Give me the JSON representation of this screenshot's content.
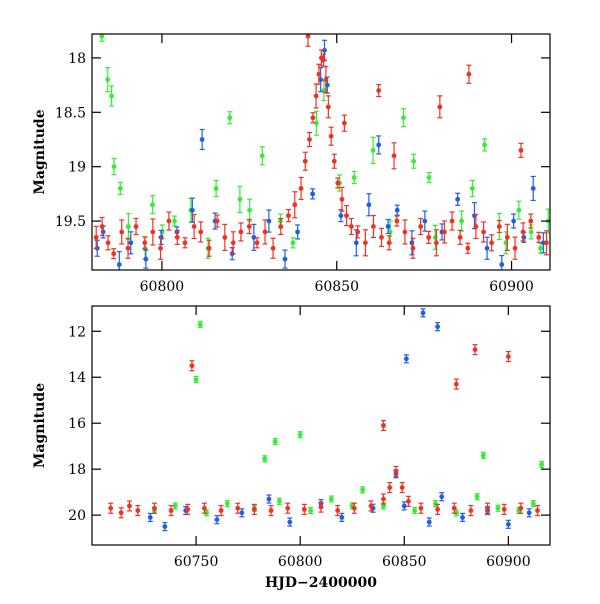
{
  "chart_data": [
    {
      "type": "scatter",
      "ylabel": "Magnitude",
      "xlabel": "",
      "xlim": [
        60780,
        60911
      ],
      "ylim": [
        19.95,
        17.78
      ],
      "y_inverted": true,
      "xticks": [
        60800,
        60850,
        60900
      ],
      "yticks": [
        18,
        18.5,
        19,
        19.5
      ],
      "grid": false,
      "series": [
        {
          "color": "#33ee33",
          "points": [
            [
              60782.8,
              17.8
            ],
            [
              60784.5,
              18.2
            ],
            [
              60785.6,
              18.35
            ],
            [
              60786.3,
              19.0
            ],
            [
              60788.1,
              19.2
            ],
            [
              60790.4,
              19.55
            ],
            [
              60795.2,
              19.75
            ],
            [
              60797.3,
              19.35
            ],
            [
              60800.1,
              19.6
            ],
            [
              60803.6,
              19.5
            ],
            [
              60808.3,
              19.4
            ],
            [
              60813.2,
              19.75
            ],
            [
              60815.5,
              19.2
            ],
            [
              60819.4,
              18.55
            ],
            [
              60822.3,
              19.3
            ],
            [
              60825.1,
              19.4
            ],
            [
              60828.7,
              18.9
            ],
            [
              60833.9,
              19.5
            ],
            [
              60837.5,
              19.7
            ],
            [
              60844.2,
              18.6
            ],
            [
              60846.3,
              18.3
            ],
            [
              60850.8,
              19.15
            ],
            [
              60855.0,
              19.1
            ],
            [
              60860.4,
              18.85
            ],
            [
              60865.3,
              19.6
            ],
            [
              60869.1,
              18.55
            ],
            [
              60872.0,
              18.95
            ],
            [
              60876.4,
              19.1
            ],
            [
              60878.2,
              19.65
            ],
            [
              60885.7,
              19.5
            ],
            [
              60888.8,
              19.2
            ],
            [
              60892.3,
              18.8
            ],
            [
              60896.5,
              19.55
            ],
            [
              60898.4,
              19.7
            ],
            [
              60902.1,
              19.4
            ],
            [
              60905.6,
              19.6
            ],
            [
              60908.3,
              19.75
            ],
            [
              60910.5,
              19.5
            ]
          ]
        },
        {
          "color": "#1f5fe8",
          "points": [
            [
              60781.5,
              19.75
            ],
            [
              60783.2,
              19.6
            ],
            [
              60787.8,
              19.9
            ],
            [
              60791.1,
              19.7
            ],
            [
              60795.4,
              19.85
            ],
            [
              60799.8,
              19.65
            ],
            [
              60804.3,
              19.6
            ],
            [
              60808.7,
              19.4
            ],
            [
              60811.5,
              18.75
            ],
            [
              60815.2,
              19.5
            ],
            [
              60820.1,
              19.8
            ],
            [
              60826.3,
              19.65
            ],
            [
              60830.6,
              19.5
            ],
            [
              60835.2,
              19.85
            ],
            [
              60838.8,
              19.6
            ],
            [
              60843.1,
              19.25
            ],
            [
              60845.4,
              18.2
            ],
            [
              60846.5,
              17.93
            ],
            [
              60847.3,
              18.25
            ],
            [
              60851.2,
              19.45
            ],
            [
              60855.6,
              19.7
            ],
            [
              60859.2,
              19.35
            ],
            [
              60862.0,
              18.8
            ],
            [
              60864.7,
              19.55
            ],
            [
              60867.3,
              19.4
            ],
            [
              60871.5,
              19.7
            ],
            [
              60875.2,
              19.5
            ],
            [
              60880.1,
              19.6
            ],
            [
              60884.6,
              19.3
            ],
            [
              60889.4,
              19.45
            ],
            [
              60893.0,
              19.75
            ],
            [
              60897.2,
              19.9
            ],
            [
              60900.6,
              19.5
            ],
            [
              60903.5,
              19.65
            ],
            [
              60906.2,
              19.2
            ],
            [
              60909.1,
              19.7
            ]
          ]
        },
        {
          "color": "#ee3322",
          "points": [
            [
              60781.2,
              19.65
            ],
            [
              60782.9,
              19.55
            ],
            [
              60784.6,
              19.7
            ],
            [
              60786.2,
              19.8
            ],
            [
              60788.5,
              19.6
            ],
            [
              60790.3,
              19.75
            ],
            [
              60792.6,
              19.55
            ],
            [
              60795.1,
              19.7
            ],
            [
              60797.4,
              19.6
            ],
            [
              60799.6,
              19.75
            ],
            [
              60802.0,
              19.5
            ],
            [
              60804.4,
              19.65
            ],
            [
              60806.6,
              19.7
            ],
            [
              60809.2,
              19.55
            ],
            [
              60811.1,
              19.6
            ],
            [
              60813.5,
              19.75
            ],
            [
              60815.8,
              19.5
            ],
            [
              60818.0,
              19.65
            ],
            [
              60820.4,
              19.7
            ],
            [
              60822.6,
              19.6
            ],
            [
              60825.0,
              19.55
            ],
            [
              60827.2,
              19.7
            ],
            [
              60829.5,
              19.6
            ],
            [
              60831.8,
              19.75
            ],
            [
              60834.0,
              19.55
            ],
            [
              60836.2,
              19.45
            ],
            [
              60838.0,
              19.35
            ],
            [
              60839.8,
              19.2
            ],
            [
              60841.0,
              18.95
            ],
            [
              60842.2,
              18.75
            ],
            [
              60843.2,
              18.55
            ],
            [
              60844.1,
              18.35
            ],
            [
              60844.9,
              18.15
            ],
            [
              60845.6,
              18.0
            ],
            [
              60846.2,
              18.02
            ],
            [
              60846.9,
              18.2
            ],
            [
              60847.6,
              18.45
            ],
            [
              60848.4,
              18.72
            ],
            [
              60849.3,
              18.95
            ],
            [
              60850.3,
              19.15
            ],
            [
              60851.5,
              19.3
            ],
            [
              60852.8,
              19.45
            ],
            [
              60854.2,
              19.55
            ],
            [
              60856.0,
              19.6
            ],
            [
              60858.2,
              19.7
            ],
            [
              60860.5,
              19.55
            ],
            [
              60862.8,
              19.65
            ],
            [
              60865.0,
              19.7
            ],
            [
              60867.2,
              19.5
            ],
            [
              60869.5,
              19.6
            ],
            [
              60871.8,
              19.75
            ],
            [
              60874.0,
              19.55
            ],
            [
              60876.3,
              19.65
            ],
            [
              60878.5,
              19.7
            ],
            [
              60880.8,
              19.6
            ],
            [
              60883.0,
              19.5
            ],
            [
              60885.3,
              19.65
            ],
            [
              60887.5,
              19.75
            ],
            [
              60889.8,
              19.55
            ],
            [
              60892.0,
              19.6
            ],
            [
              60894.3,
              19.7
            ],
            [
              60896.5,
              19.55
            ],
            [
              60898.8,
              19.65
            ],
            [
              60901.0,
              19.75
            ],
            [
              60903.3,
              19.6
            ],
            [
              60905.5,
              19.5
            ],
            [
              60907.8,
              19.65
            ],
            [
              60910.0,
              19.7
            ],
            [
              60841.8,
              17.8
            ],
            [
              60852.2,
              18.6
            ],
            [
              60862.0,
              18.3
            ],
            [
              60866.4,
              18.9
            ],
            [
              60879.5,
              18.45
            ],
            [
              60887.8,
              18.15
            ],
            [
              60902.7,
              18.85
            ]
          ]
        }
      ]
    },
    {
      "type": "scatter",
      "ylabel": "Magnitude",
      "xlabel": "HJD−2400000",
      "xlim": [
        60700,
        60920
      ],
      "ylim": [
        21.3,
        10.9
      ],
      "y_inverted": true,
      "xticks": [
        60750,
        60800,
        60850,
        60900
      ],
      "yticks": [
        12,
        14,
        16,
        18,
        20
      ],
      "grid": false,
      "series": [
        {
          "color": "#33ee33",
          "points": [
            [
              60752,
              11.7
            ],
            [
              60750,
              14.1
            ],
            [
              60783,
              17.55
            ],
            [
              60788,
              16.8
            ],
            [
              60800,
              16.5
            ],
            [
              60888,
              17.4
            ],
            [
              60916,
              17.8
            ],
            [
              60730,
              19.8
            ],
            [
              60740,
              19.6
            ],
            [
              60755,
              19.9
            ],
            [
              60765,
              19.5
            ],
            [
              60778,
              19.7
            ],
            [
              60790,
              19.4
            ],
            [
              60805,
              19.8
            ],
            [
              60815,
              19.3
            ],
            [
              60825,
              19.6
            ],
            [
              60830,
              18.9
            ],
            [
              60840,
              19.6
            ],
            [
              60855,
              19.8
            ],
            [
              60865,
              19.5
            ],
            [
              60875,
              19.9
            ],
            [
              60885,
              19.2
            ],
            [
              60895,
              19.7
            ],
            [
              60905,
              19.8
            ],
            [
              60912,
              19.5
            ]
          ]
        },
        {
          "color": "#1f5fe8",
          "points": [
            [
              60859,
              11.2
            ],
            [
              60866,
              11.8
            ],
            [
              60851,
              13.2
            ],
            [
              60728,
              20.1
            ],
            [
              60735,
              20.5
            ],
            [
              60745,
              19.8
            ],
            [
              60760,
              20.2
            ],
            [
              60772,
              19.9
            ],
            [
              60785,
              19.3
            ],
            [
              60795,
              20.3
            ],
            [
              60810,
              19.5
            ],
            [
              60820,
              20.1
            ],
            [
              60835,
              19.7
            ],
            [
              60846,
              18.2
            ],
            [
              60850,
              19.6
            ],
            [
              60862,
              20.3
            ],
            [
              60868,
              19.2
            ],
            [
              60878,
              20.1
            ],
            [
              60890,
              19.8
            ],
            [
              60900,
              20.4
            ],
            [
              60910,
              19.9
            ]
          ]
        },
        {
          "color": "#ee3322",
          "points": [
            [
              60748,
              13.5
            ],
            [
              60884,
              12.8
            ],
            [
              60900,
              13.1
            ],
            [
              60875,
              14.3
            ],
            [
              60840,
              16.1
            ],
            [
              60709,
              19.7
            ],
            [
              60714,
              19.9
            ],
            [
              60718,
              19.6
            ],
            [
              60722,
              19.8
            ],
            [
              60730,
              19.7
            ],
            [
              60738,
              19.8
            ],
            [
              60746,
              19.75
            ],
            [
              60754,
              19.7
            ],
            [
              60762,
              19.8
            ],
            [
              60770,
              19.7
            ],
            [
              60778,
              19.75
            ],
            [
              60786,
              19.8
            ],
            [
              60794,
              19.7
            ],
            [
              60802,
              19.75
            ],
            [
              60810,
              19.65
            ],
            [
              60818,
              19.8
            ],
            [
              60826,
              19.7
            ],
            [
              60834,
              19.6
            ],
            [
              60840,
              19.3
            ],
            [
              60843,
              18.8
            ],
            [
              60846,
              18.1
            ],
            [
              60849,
              18.8
            ],
            [
              60852,
              19.4
            ],
            [
              60858,
              19.7
            ],
            [
              60866,
              19.75
            ],
            [
              60874,
              19.7
            ],
            [
              60882,
              19.8
            ],
            [
              60890,
              19.7
            ],
            [
              60898,
              19.75
            ],
            [
              60906,
              19.7
            ],
            [
              60914,
              19.8
            ]
          ]
        }
      ]
    }
  ]
}
